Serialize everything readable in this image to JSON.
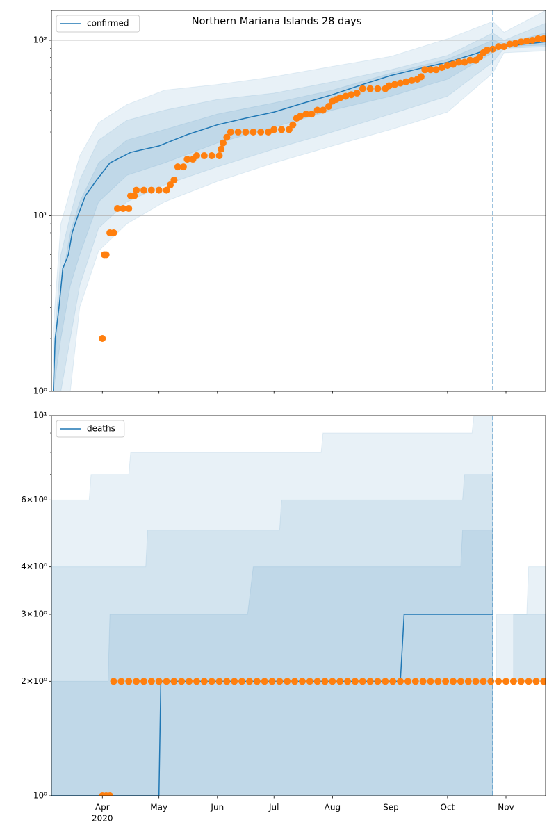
{
  "chart_data": [
    {
      "type": "line",
      "title": "Northern Mariana Islands 28 days",
      "x": [
        66,
        67,
        69,
        71,
        74,
        76,
        79,
        83,
        89,
        96,
        107,
        122,
        137,
        153,
        168,
        183,
        199,
        214,
        230,
        245,
        260,
        275,
        290,
        299,
        312,
        327
      ],
      "series": [
        {
          "name": "confirmed",
          "color": "#1f77b4",
          "values": [
            1,
            2,
            3,
            5,
            6,
            8,
            10,
            13,
            16,
            20,
            23,
            25,
            29,
            33,
            36,
            39,
            44,
            49,
            56,
            63,
            69,
            75,
            84,
            91,
            94,
            98
          ]
        }
      ],
      "observed": {
        "color": "#ff7f0e",
        "x": [
          92,
          93,
          94,
          96,
          98,
          100,
          103,
          106,
          107,
          109,
          110,
          114,
          118,
          122,
          126,
          128,
          130,
          132,
          135,
          137,
          140,
          142,
          146,
          150,
          154,
          155,
          156,
          158,
          160,
          164,
          168,
          172,
          176,
          180,
          183,
          187,
          191,
          193,
          195,
          197,
          200,
          203,
          206,
          209,
          212,
          214,
          216,
          218,
          221,
          224,
          227,
          230,
          234,
          238,
          242,
          244,
          247,
          250,
          253,
          256,
          259,
          261,
          263,
          266,
          269,
          272,
          275,
          278,
          281,
          284,
          287,
          290,
          292,
          294,
          296,
          299,
          302,
          305,
          308,
          311,
          314,
          317,
          320,
          323,
          326
        ],
        "values": [
          2,
          6,
          6,
          8,
          8,
          11,
          11,
          11,
          13,
          13,
          14,
          14,
          14,
          14,
          14,
          15,
          16,
          19,
          19,
          21,
          21,
          22,
          22,
          22,
          22,
          24,
          26,
          28,
          30,
          30,
          30,
          30,
          30,
          30,
          31,
          31,
          31,
          33,
          36,
          37,
          38,
          38,
          40,
          40,
          42,
          45,
          46,
          47,
          48,
          49,
          50,
          53,
          53,
          53,
          53,
          55,
          56,
          57,
          58,
          59,
          60,
          62,
          68,
          68,
          68,
          70,
          72,
          73,
          75,
          75,
          77,
          77,
          80,
          85,
          88,
          89,
          92,
          92,
          95,
          96,
          98,
          99,
          100,
          102,
          102
        ]
      },
      "bands": [
        {
          "x": [
            66,
            70,
            75,
            80,
            90,
            105,
            125,
            153,
            183,
            214,
            245,
            275,
            299,
            305,
            327
          ],
          "lower": [
            1,
            1,
            1,
            3,
            6.3,
            9,
            12,
            15.7,
            20,
            25,
            31,
            39,
            65,
            85,
            87
          ],
          "upper": [
            2.3,
            9,
            14,
            22,
            34,
            43,
            52,
            56,
            62,
            71,
            81,
            102,
            128,
            111,
            148
          ]
        },
        {
          "x": [
            66,
            70,
            75,
            80,
            90,
            105,
            125,
            153,
            183,
            214,
            245,
            275,
            299,
            305,
            327
          ],
          "lower": [
            1,
            1,
            2,
            4,
            8.5,
            12,
            15,
            19,
            24,
            30,
            38,
            48,
            75,
            90,
            92
          ],
          "upper": [
            1.5,
            6,
            10,
            16,
            27,
            35,
            40,
            46,
            50,
            58,
            68,
            82,
            110,
            100,
            125
          ]
        },
        {
          "x": [
            66,
            70,
            75,
            80,
            90,
            105,
            125,
            153,
            183,
            214,
            245,
            275,
            299,
            305,
            327
          ],
          "lower": [
            1,
            2,
            4,
            6,
            12,
            17,
            20,
            26,
            32,
            40,
            48,
            60,
            85,
            92,
            94
          ],
          "upper": [
            1.2,
            4,
            8,
            12,
            20,
            27,
            31,
            38,
            44,
            52,
            65,
            78,
            100,
            96,
            110
          ]
        }
      ],
      "band_color": "#1f77b4",
      "vline": 299,
      "xlim": [
        65,
        327
      ],
      "xticks": [
        92,
        122,
        153,
        183,
        214,
        245,
        275,
        306
      ],
      "ylim": [
        1,
        148
      ],
      "log_y": true,
      "yticks": [
        {
          "value": 1,
          "label": "10⁰"
        },
        {
          "value": 10,
          "label": "10¹"
        },
        {
          "value": 100,
          "label": "10²"
        }
      ],
      "minor_yticks": [
        2,
        3,
        4,
        5,
        6,
        7,
        8,
        9,
        20,
        30,
        40,
        50,
        60,
        70,
        80,
        90
      ],
      "grid": true,
      "legend": "upper left"
    },
    {
      "type": "line",
      "x": [
        65,
        122,
        123,
        250,
        252,
        299
      ],
      "series": [
        {
          "name": "deaths",
          "color": "#1f77b4",
          "values": [
            1,
            1,
            2,
            2,
            3,
            3
          ]
        }
      ],
      "observed": {
        "color": "#ff7f0e",
        "x": [
          92,
          94,
          96,
          98,
          102,
          106,
          110,
          114,
          118,
          122,
          126,
          130,
          134,
          138,
          142,
          146,
          150,
          154,
          158,
          162,
          166,
          170,
          174,
          178,
          182,
          186,
          190,
          194,
          198,
          202,
          206,
          210,
          214,
          218,
          222,
          226,
          230,
          234,
          238,
          242,
          246,
          250,
          254,
          258,
          262,
          266,
          270,
          274,
          278,
          282,
          286,
          290,
          294,
          298,
          302,
          306,
          310,
          314,
          318,
          322,
          326
        ],
        "values": [
          1,
          1,
          1,
          2,
          2,
          2,
          2,
          2,
          2,
          2,
          2,
          2,
          2,
          2,
          2,
          2,
          2,
          2,
          2,
          2,
          2,
          2,
          2,
          2,
          2,
          2,
          2,
          2,
          2,
          2,
          2,
          2,
          2,
          2,
          2,
          2,
          2,
          2,
          2,
          2,
          2,
          2,
          2,
          2,
          2,
          2,
          2,
          2,
          2,
          2,
          2,
          2,
          2,
          2,
          2,
          2,
          2,
          2,
          2,
          2,
          2
        ]
      },
      "bands": [
        {
          "x": [
            65,
            85,
            86,
            106,
            107,
            208,
            209,
            288,
            289,
            299
          ],
          "lower": [
            1,
            1,
            1,
            1,
            1,
            1,
            1,
            1,
            1,
            1
          ],
          "upper": [
            6,
            6,
            7,
            7,
            8,
            8,
            9,
            9,
            10,
            10
          ]
        },
        {
          "x": [
            65,
            115,
            116,
            186,
            187,
            283,
            284,
            299
          ],
          "lower": [
            1,
            1,
            1,
            1,
            1,
            1,
            1,
            1
          ],
          "upper": [
            4,
            4,
            5,
            5,
            6,
            6,
            7,
            7
          ]
        },
        {
          "x": [
            65,
            95,
            96,
            169,
            172,
            282,
            283,
            299
          ],
          "lower": [
            1,
            1,
            1,
            1,
            1,
            1,
            1,
            1
          ],
          "upper": [
            2,
            2,
            3,
            3,
            4,
            4,
            5,
            5
          ]
        },
        {
          "x": [
            301,
            317,
            318,
            327
          ],
          "lower": [
            2,
            2,
            2,
            2
          ],
          "upper": [
            3,
            3,
            4,
            4
          ]
        },
        {
          "x": [
            310,
            327
          ],
          "lower": [
            2,
            2
          ],
          "upper": [
            3,
            3
          ]
        }
      ],
      "band_color": "#1f77b4",
      "vline": 299,
      "xlim": [
        65,
        327
      ],
      "xticks": [
        {
          "value": 92,
          "label": "Apr"
        },
        {
          "value": 122,
          "label": "May"
        },
        {
          "value": 153,
          "label": "Jun"
        },
        {
          "value": 183,
          "label": "Jul"
        },
        {
          "value": 214,
          "label": "Aug"
        },
        {
          "value": 245,
          "label": "Sep"
        },
        {
          "value": 275,
          "label": "Oct"
        },
        {
          "value": 306,
          "label": "Nov"
        }
      ],
      "year_label": "2020",
      "ylim": [
        1,
        10
      ],
      "log_y": true,
      "yticks": [
        {
          "value": 1,
          "label": "10⁰"
        },
        {
          "value": 2,
          "label": "2×10⁰"
        },
        {
          "value": 3,
          "label": "3×10⁰"
        },
        {
          "value": 4,
          "label": "4×10⁰"
        },
        {
          "value": 6,
          "label": "6×10⁰"
        },
        {
          "value": 10,
          "label": "10¹"
        }
      ],
      "minor_yticks": [
        5,
        7,
        8,
        9
      ],
      "grid": false,
      "legend": "upper left"
    }
  ]
}
